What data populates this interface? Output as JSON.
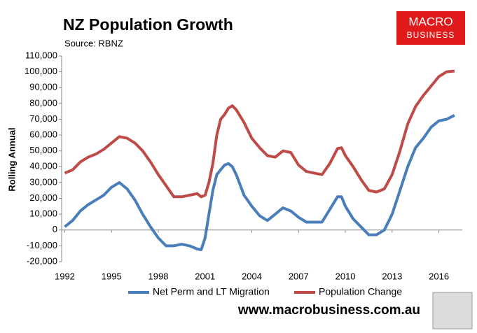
{
  "chart_data": {
    "type": "line",
    "title": "NZ Population Growth",
    "subtitle": "Source: RBNZ",
    "ylabel": "Rolling Annual",
    "logo": [
      "MACRO",
      "BUSINESS"
    ],
    "footer": "www.macrobusiness.com.au",
    "x": [
      1992,
      1992.5,
      1993,
      1993.5,
      1994,
      1994.5,
      1995,
      1995.5,
      1996,
      1996.5,
      1997,
      1997.5,
      1998,
      1998.5,
      1999,
      1999.5,
      2000,
      2000.5,
      2000.75,
      2001,
      2001.25,
      2001.5,
      2001.75,
      2002,
      2002.25,
      2002.5,
      2002.75,
      2003,
      2003.5,
      2004,
      2004.5,
      2005,
      2005.5,
      2006,
      2006.5,
      2007,
      2007.5,
      2008,
      2008.5,
      2009,
      2009.5,
      2009.75,
      2010,
      2010.5,
      2011,
      2011.5,
      2012,
      2012.5,
      2013,
      2013.5,
      2014,
      2014.5,
      2015,
      2015.5,
      2016,
      2016.5,
      2017
    ],
    "series": [
      {
        "name": "Net Perm and LT Migration",
        "color": "#4a7ebb",
        "values": [
          2000,
          6000,
          12000,
          16000,
          19000,
          22000,
          27000,
          30000,
          26000,
          19000,
          10000,
          2000,
          -5000,
          -10000,
          -10000,
          -9000,
          -10000,
          -12000,
          -12500,
          -5000,
          10000,
          25000,
          35000,
          38000,
          41000,
          42000,
          40000,
          35000,
          22000,
          15000,
          9000,
          6000,
          10000,
          14000,
          12000,
          8000,
          5000,
          5000,
          5000,
          13000,
          21000,
          21000,
          15000,
          7000,
          2000,
          -3000,
          -3000,
          0,
          10000,
          25000,
          40000,
          52000,
          58000,
          65000,
          69000,
          70000,
          72500
        ]
      },
      {
        "name": "Population Change",
        "color": "#be4b48",
        "values": [
          36000,
          38000,
          43000,
          46000,
          48000,
          51000,
          55000,
          59000,
          58000,
          55000,
          50000,
          43000,
          35000,
          28000,
          21000,
          21000,
          22000,
          23000,
          21000,
          22000,
          30000,
          42000,
          60000,
          70000,
          73000,
          77000,
          78500,
          76000,
          68000,
          58000,
          52000,
          47000,
          46000,
          50000,
          49000,
          41000,
          37000,
          36000,
          35000,
          42000,
          51500,
          52000,
          47000,
          40000,
          32000,
          25000,
          24000,
          26000,
          35000,
          50000,
          67000,
          78000,
          85000,
          91000,
          97000,
          100000,
          100500
        ]
      }
    ],
    "xlim": [
      1991.8,
      2017.5
    ],
    "xticks": [
      1992,
      1995,
      1998,
      2001,
      2004,
      2007,
      2010,
      2013,
      2016
    ],
    "ylim": [
      -20000,
      110000
    ],
    "yticks": [
      {
        "value": -20000,
        "label": "-20,000"
      },
      {
        "value": -10000,
        "label": "-10,000"
      },
      0,
      {
        "value": 10000,
        "label": "10,000"
      },
      {
        "value": 20000,
        "label": "20,000"
      },
      {
        "value": 30000,
        "label": "30,000"
      },
      {
        "value": 40000,
        "label": "40,000"
      },
      {
        "value": 50000,
        "label": "50,000"
      },
      {
        "value": 60000,
        "label": "60,000"
      },
      {
        "value": 70000,
        "label": "70,000"
      },
      {
        "value": 80000,
        "label": "80,000"
      },
      {
        "value": 90000,
        "label": "90,000"
      },
      {
        "value": 100000,
        "label": "100,000"
      },
      {
        "value": 110000,
        "label": "110,000"
      }
    ],
    "grid": false,
    "legend": "bottom"
  }
}
